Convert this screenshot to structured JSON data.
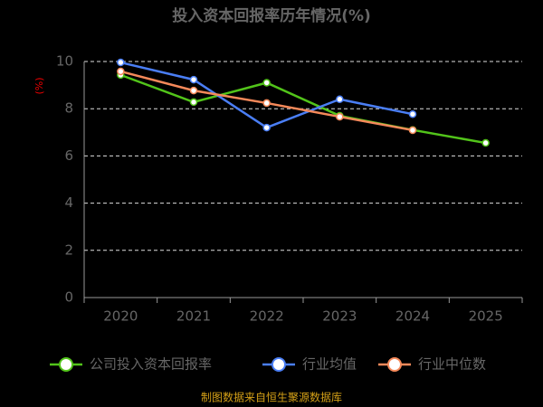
{
  "chart_data": {
    "type": "line",
    "title": "投入资本回报率历年情况(%)",
    "y_label": "(%)",
    "source": "制图数据来自恒生聚源数据库",
    "categories": [
      "2020",
      "2021",
      "2022",
      "2023",
      "2024",
      "2025"
    ],
    "series": [
      {
        "name": "公司投入资本回报率",
        "color": "#52c41a",
        "values": [
          9.43,
          8.28,
          9.1,
          7.7,
          7.1,
          6.55
        ]
      },
      {
        "name": "行业均值",
        "color": "#4a7ef5",
        "values": [
          9.96,
          9.23,
          7.2,
          8.4,
          7.77,
          null
        ]
      },
      {
        "name": "行业中位数",
        "color": "#f5895a",
        "values": [
          9.58,
          8.77,
          8.24,
          7.66,
          7.09,
          null
        ]
      }
    ],
    "ylim": [
      0,
      10
    ],
    "yticks": [
      0,
      2,
      4,
      6,
      8,
      10
    ],
    "grid": true
  }
}
